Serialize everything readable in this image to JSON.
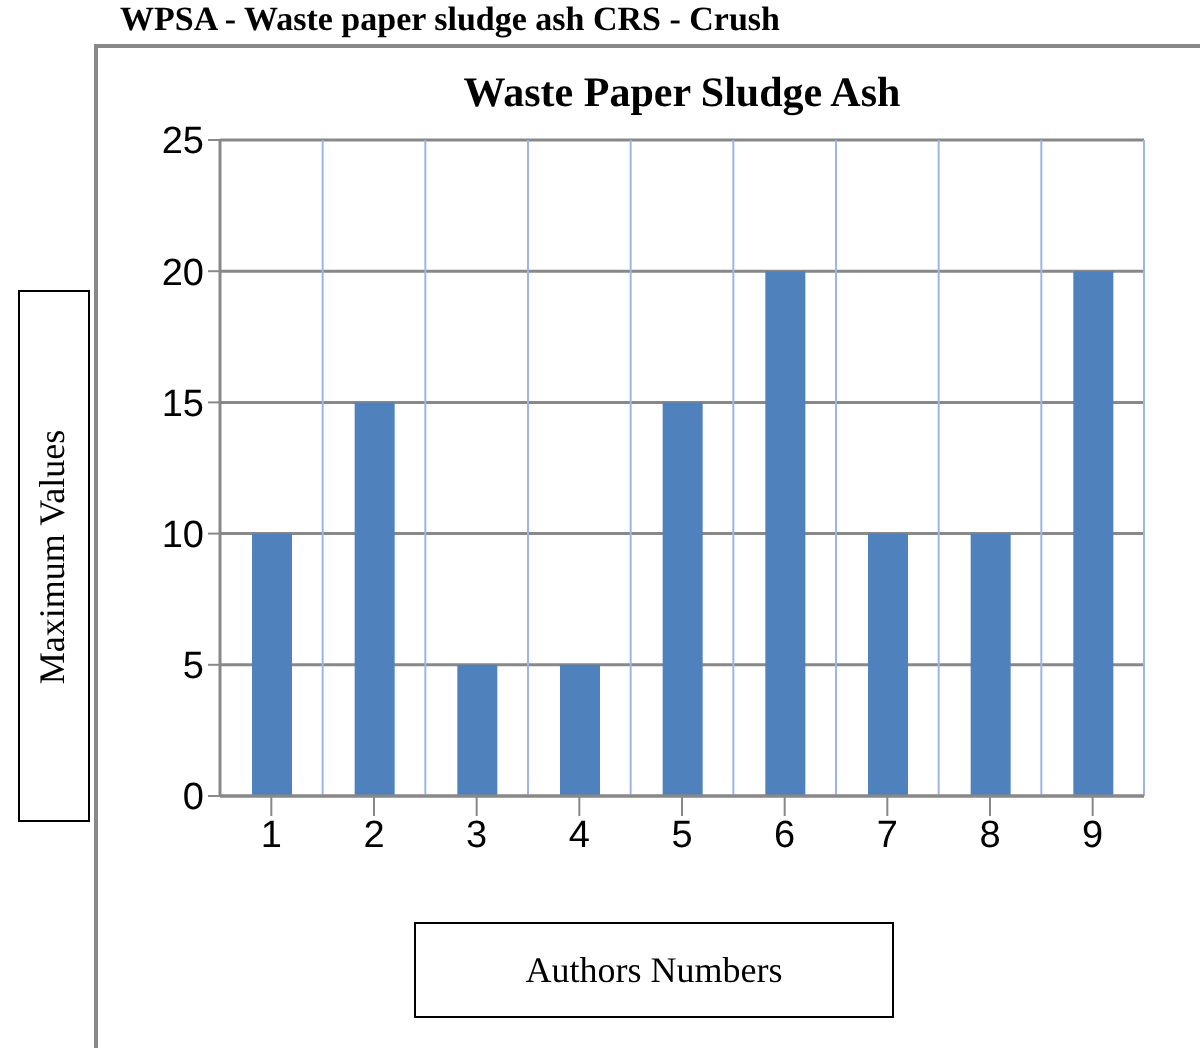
{
  "chart_data": {
    "type": "bar",
    "title": "Waste Paper Sludge Ash",
    "xlabel": "Authors Numbers",
    "ylabel": "Maximum Values",
    "annotations": [
      "WPSA - Waste paper sludge ash  CRS - Crush"
    ],
    "categories": [
      "1",
      "2",
      "3",
      "4",
      "5",
      "6",
      "7",
      "8",
      "9"
    ],
    "values": [
      10,
      15,
      5,
      5,
      15,
      20,
      10,
      10,
      20
    ],
    "color": "#4f81bd",
    "ylim": [
      0,
      25
    ],
    "yticks": [
      0,
      5,
      10,
      15,
      20,
      25
    ],
    "grid": true
  }
}
